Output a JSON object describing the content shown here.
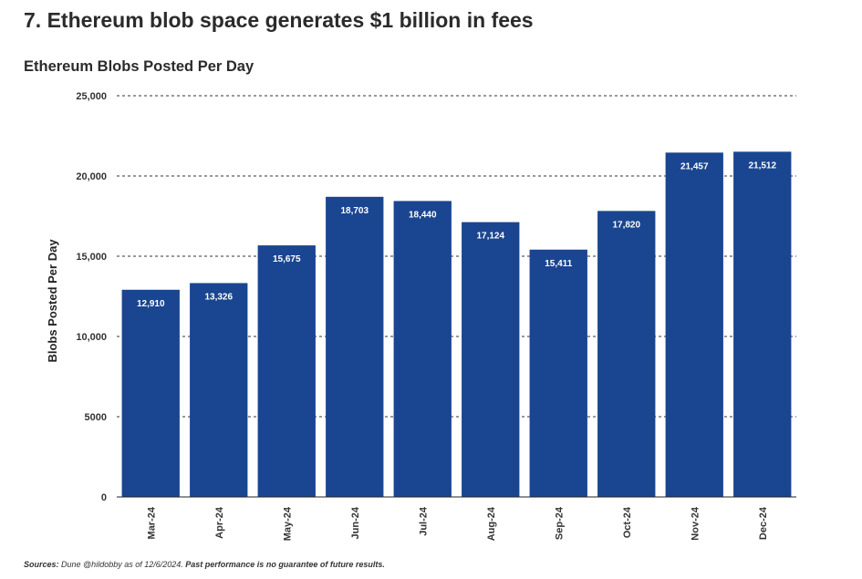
{
  "heading": "7. Ethereum blob space generates $1 billion in fees",
  "chart_data": {
    "type": "bar",
    "title": "Ethereum Blobs Posted Per Day",
    "ylabel": "Blobs Posted Per Day",
    "xlabel": "",
    "categories": [
      "Mar-24",
      "Apr-24",
      "May-24",
      "Jun-24",
      "Jul-24",
      "Aug-24",
      "Sep-24",
      "Oct-24",
      "Nov-24",
      "Dec-24"
    ],
    "values": [
      12910,
      13326,
      15675,
      18703,
      18440,
      17124,
      15411,
      17820,
      21457,
      21512
    ],
    "value_labels": [
      "12,910",
      "13,326",
      "15,675",
      "18,703",
      "18,440",
      "17,124",
      "15,411",
      "17,820",
      "21,457",
      "21,512"
    ],
    "ylim": [
      0,
      25000
    ],
    "yticks": [
      0,
      5000,
      10000,
      15000,
      20000,
      25000
    ],
    "ytick_labels": [
      "0",
      "5000",
      "10,000",
      "15,000",
      "20,000",
      "25,000"
    ],
    "grid": "horizontal dashed",
    "bar_color": "#1a4590"
  },
  "source": {
    "prefix": "Sources:",
    "text": "Dune @hildobby as of 12/6/2024.",
    "disclaimer": "Past performance is no guarantee of future results."
  }
}
